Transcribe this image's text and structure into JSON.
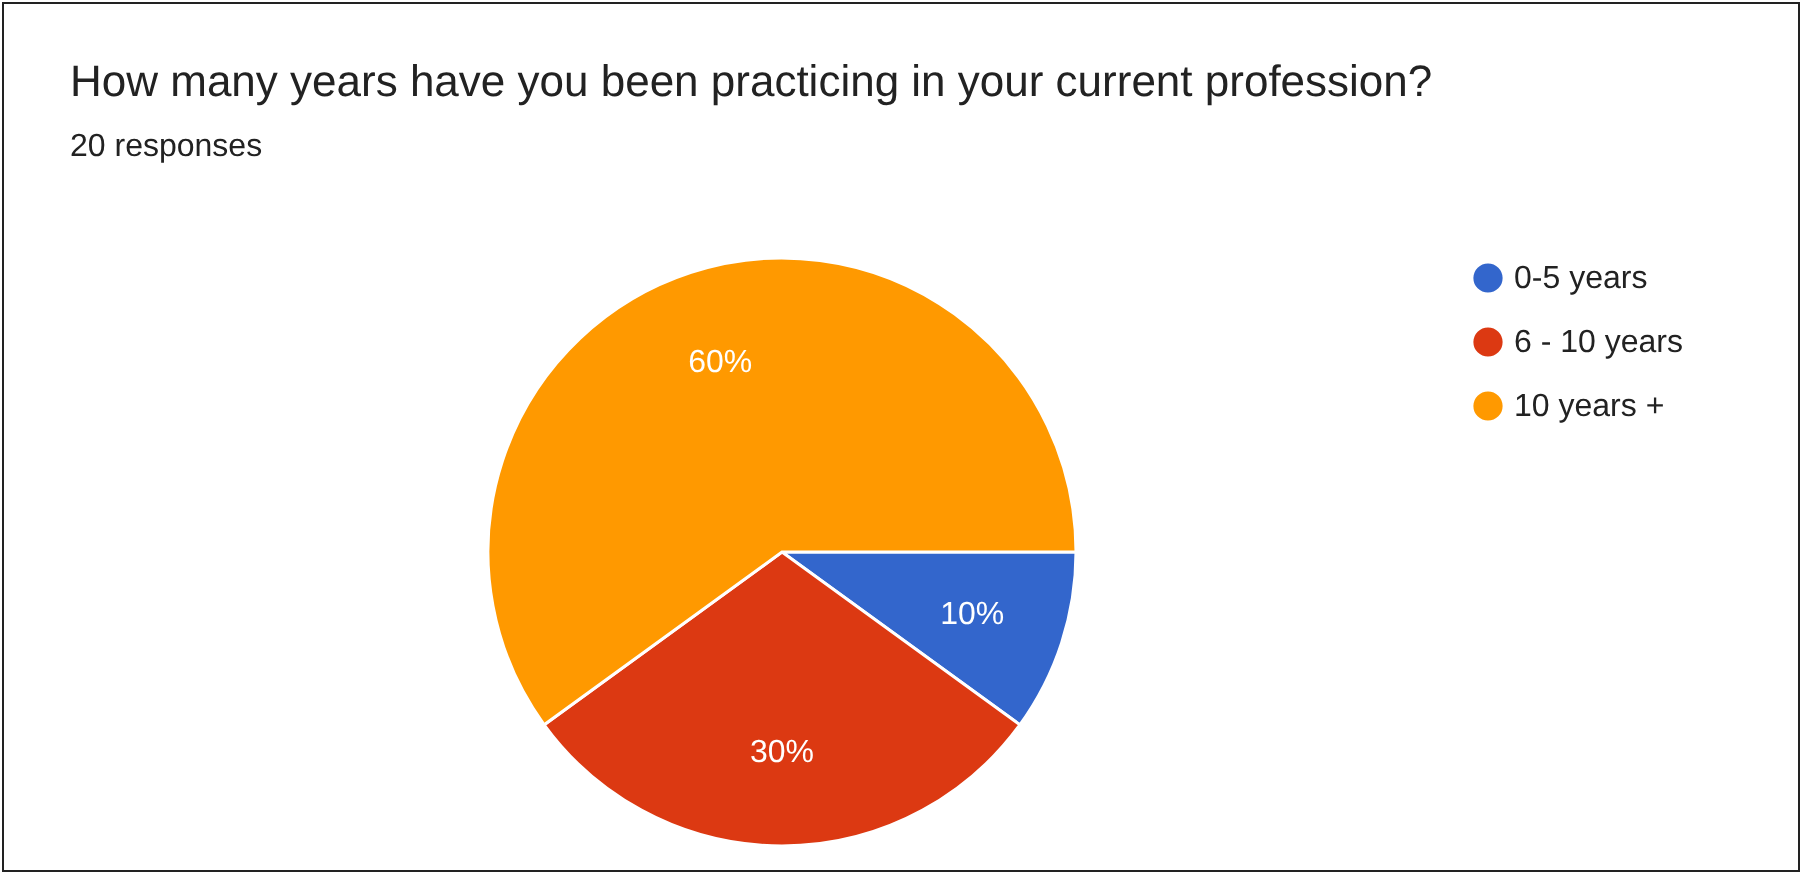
{
  "chart_data": {
    "type": "pie",
    "title": "How many years have you been practicing in your current profession?",
    "subtitle": "20 responses",
    "categories": [
      "0-5 years",
      "6 - 10 years",
      "10 years +"
    ],
    "values": [
      10,
      30,
      60
    ],
    "colors": [
      "#3366cc",
      "#dc3912",
      "#ff9900"
    ],
    "value_labels": [
      "10%",
      "30%",
      "60%"
    ],
    "legend": "right"
  }
}
